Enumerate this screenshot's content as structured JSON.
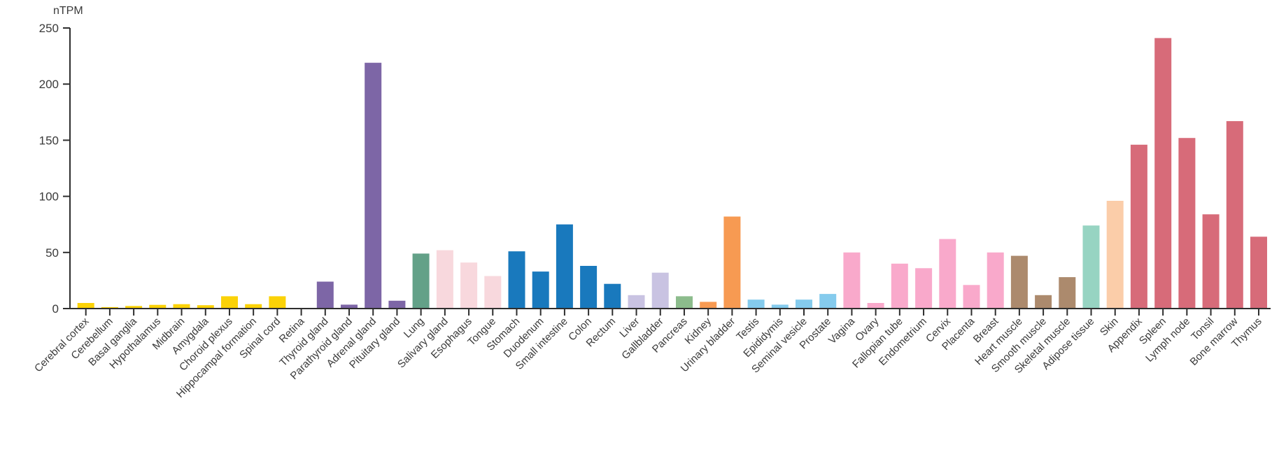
{
  "chart_data": {
    "type": "bar",
    "title": "",
    "ylabel": "nTPM",
    "xlabel": "",
    "ylim": [
      0,
      250
    ],
    "yticks": [
      0,
      50,
      100,
      150,
      200,
      250
    ],
    "grid": false,
    "legend": "none",
    "categories": [
      "Cerebral cortex",
      "Cerebellum",
      "Basal ganglia",
      "Hypothalamus",
      "Midbrain",
      "Amygdala",
      "Choroid plexus",
      "Hippocampal formation",
      "Spinal cord",
      "Retina",
      "Thyroid gland",
      "Parathyroid gland",
      "Adrenal gland",
      "Pituitary gland",
      "Lung",
      "Salivary gland",
      "Esophagus",
      "Tongue",
      "Stomach",
      "Duodenum",
      "Small intestine",
      "Colon",
      "Rectum",
      "Liver",
      "Gallbladder",
      "Pancreas",
      "Kidney",
      "Urinary bladder",
      "Testis",
      "Epididymis",
      "Seminal vesicle",
      "Prostate",
      "Vagina",
      "Ovary",
      "Fallopian tube",
      "Endometrium",
      "Cervix",
      "Placenta",
      "Breast",
      "Heart muscle",
      "Smooth muscle",
      "Skeletal muscle",
      "Adipose tissue",
      "Skin",
      "Appendix",
      "Spleen",
      "Lymph node",
      "Tonsil",
      "Bone marrow",
      "Thymus"
    ],
    "values": [
      5,
      1.3,
      2.3,
      3.3,
      3.9,
      3,
      11,
      3.9,
      11,
      0.6,
      24,
      3.5,
      219,
      7,
      49,
      52,
      41,
      29,
      51,
      33,
      75,
      38,
      22,
      12,
      32,
      11,
      6,
      82,
      8,
      3.5,
      8,
      13,
      50,
      5,
      40,
      36,
      62,
      21,
      50,
      47,
      12,
      28,
      74,
      96,
      146,
      241,
      152,
      84,
      167,
      64
    ],
    "colors": [
      "#FBD207",
      "#FBD207",
      "#FBD207",
      "#FBD207",
      "#FBD207",
      "#FBD207",
      "#FBD207",
      "#FBD207",
      "#FBD207",
      "#FBD207",
      "#7D66A6",
      "#7D66A6",
      "#7D66A6",
      "#7D66A6",
      "#63A188",
      "#F8D8DD",
      "#F8D8DD",
      "#F8D8DD",
      "#1979BD",
      "#1979BD",
      "#1979BD",
      "#1979BD",
      "#1979BD",
      "#C9C3E2",
      "#C9C3E2",
      "#8CBC8C",
      "#F79A52",
      "#F79A52",
      "#85CBED",
      "#85CBED",
      "#85CBED",
      "#85CBED",
      "#F9A9CB",
      "#F9A9CB",
      "#F9A9CB",
      "#F9A9CB",
      "#F9A9CB",
      "#F9A9CB",
      "#F9A9CB",
      "#AC8A6D",
      "#AC8A6D",
      "#AC8A6D",
      "#97D4C2",
      "#FBCDA9",
      "#D76B79",
      "#D76B79",
      "#D76B79",
      "#D76B79",
      "#D76B79",
      "#D76B79"
    ],
    "axis_color": "#2e2e2e",
    "text_color": "#3a3a3a"
  }
}
